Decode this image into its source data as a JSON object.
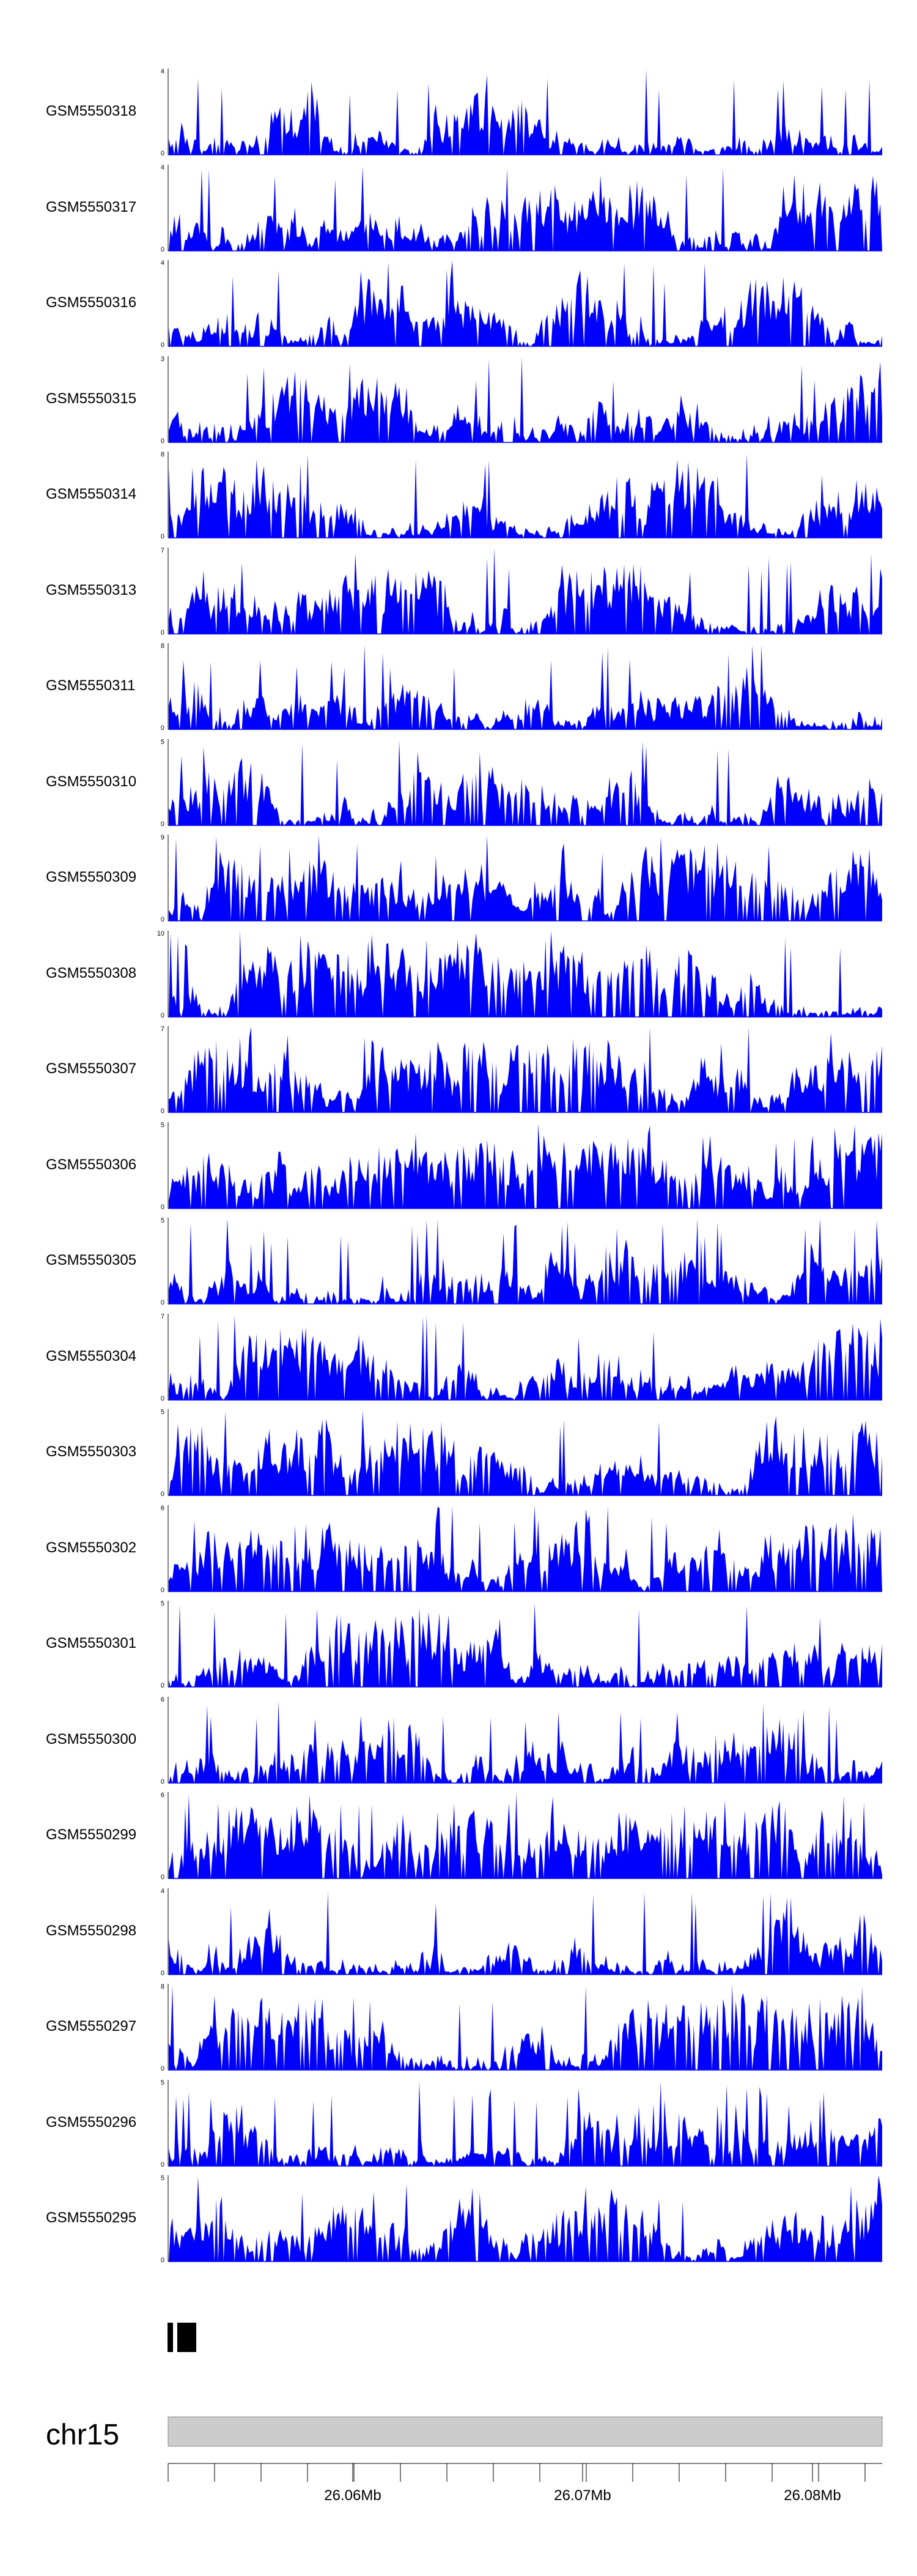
{
  "chart_data": {
    "type": "area",
    "color": "#0000ff",
    "chromosome": "chr15",
    "x_ticks": [
      "26.06Mb",
      "26.07Mb",
      "26.08Mb"
    ],
    "tracks": [
      {
        "name": "GSM5550318",
        "ymax": 4
      },
      {
        "name": "GSM5550317",
        "ymax": 4
      },
      {
        "name": "GSM5550316",
        "ymax": 4
      },
      {
        "name": "GSM5550315",
        "ymax": 3
      },
      {
        "name": "GSM5550314",
        "ymax": 8
      },
      {
        "name": "GSM5550313",
        "ymax": 7
      },
      {
        "name": "GSM5550311",
        "ymax": 8
      },
      {
        "name": "GSM5550310",
        "ymax": 5
      },
      {
        "name": "GSM5550309",
        "ymax": 9
      },
      {
        "name": "GSM5550308",
        "ymax": 10
      },
      {
        "name": "GSM5550307",
        "ymax": 7
      },
      {
        "name": "GSM5550306",
        "ymax": 5
      },
      {
        "name": "GSM5550305",
        "ymax": 5
      },
      {
        "name": "GSM5550304",
        "ymax": 7
      },
      {
        "name": "GSM5550303",
        "ymax": 5
      },
      {
        "name": "GSM5550302",
        "ymax": 6
      },
      {
        "name": "GSM5550301",
        "ymax": 5
      },
      {
        "name": "GSM5550300",
        "ymax": 6
      },
      {
        "name": "GSM5550299",
        "ymax": 6
      },
      {
        "name": "GSM5550298",
        "ymax": 4
      },
      {
        "name": "GSM5550297",
        "ymax": 8
      },
      {
        "name": "GSM5550296",
        "ymax": 5
      },
      {
        "name": "GSM5550295",
        "ymax": 5
      }
    ]
  }
}
